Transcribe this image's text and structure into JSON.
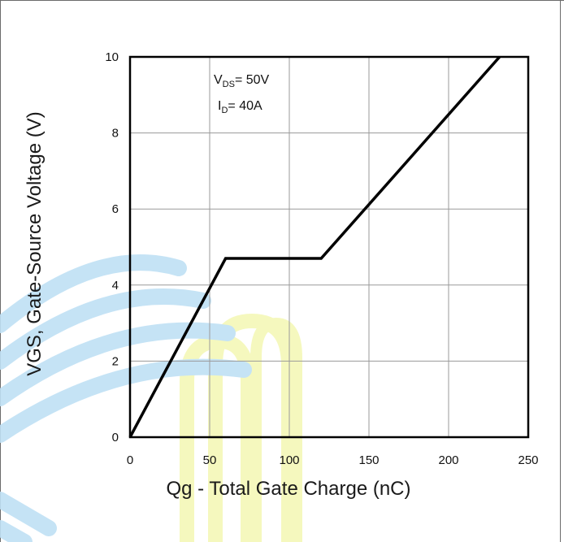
{
  "chart_data": {
    "type": "line",
    "title": "",
    "xlabel": "Qg - Total Gate Charge (nC)",
    "ylabel": "VGS, Gate-Source Voltage (V)",
    "xlim": [
      0,
      250
    ],
    "ylim": [
      0,
      10
    ],
    "xticks": [
      0,
      50,
      100,
      150,
      200,
      250
    ],
    "yticks": [
      0,
      2,
      4,
      6,
      8,
      10
    ],
    "grid": true,
    "series": [
      {
        "x": [
          0,
          60,
          120,
          232
        ],
        "y": [
          0,
          4.7,
          4.7,
          10
        ]
      }
    ],
    "annotations": {
      "vds_main": "V",
      "vds_sub": "DS",
      "vds_value": "= 50V",
      "id_main": "I",
      "id_sub": "D",
      "id_value": "= 40A"
    }
  },
  "colors": {
    "line": "#000000",
    "grid": "#9a9a9a",
    "watermark_blue": "#bfe0f5",
    "watermark_yellow": "#f4f8b8"
  }
}
